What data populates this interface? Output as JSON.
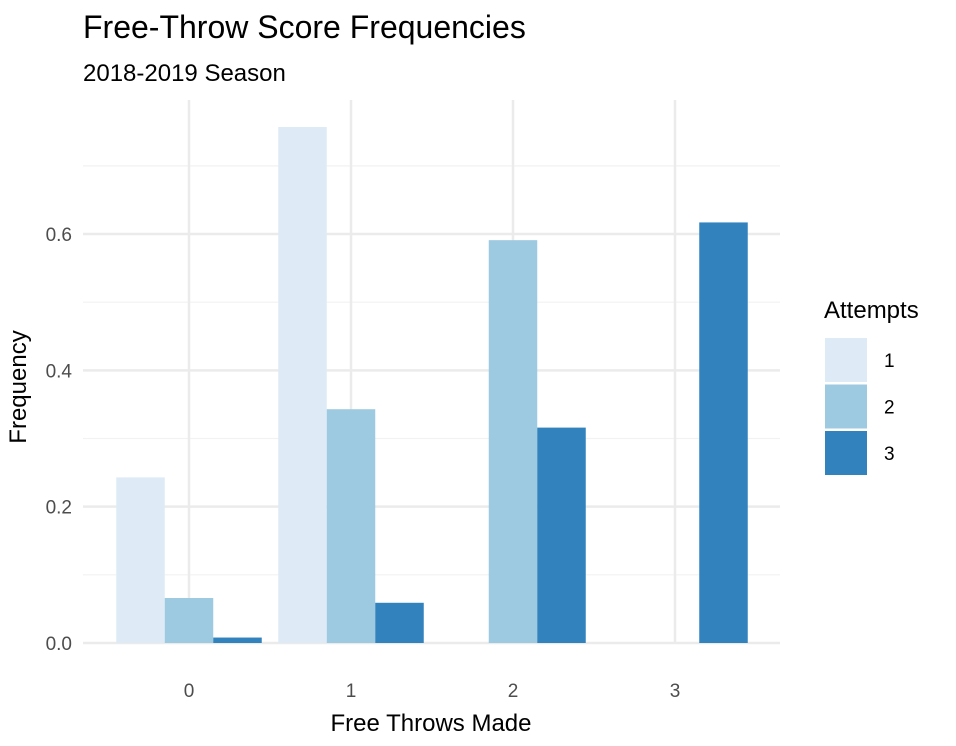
{
  "chart_data": {
    "type": "bar",
    "title": "Free-Throw Score Frequencies",
    "subtitle": "2018-2019 Season",
    "xlabel": "Free Throws Made",
    "ylabel": "Frequency",
    "categories": [
      "0",
      "1",
      "2",
      "3"
    ],
    "series": [
      {
        "name": "1",
        "color": "#deebf7",
        "values": [
          0.243,
          0.757,
          0,
          0
        ]
      },
      {
        "name": "2",
        "color": "#9ecae1",
        "values": [
          0.066,
          0.343,
          0.591,
          0
        ]
      },
      {
        "name": "3",
        "color": "#3182bd",
        "values": [
          0.008,
          0.059,
          0.316,
          0.617
        ]
      }
    ],
    "ylim": [
      0,
      0.757
    ],
    "yticks": [
      0.0,
      0.2,
      0.4,
      0.6
    ],
    "ytick_labels": [
      "0.0",
      "0.2",
      "0.4",
      "0.6"
    ],
    "grid": true,
    "legend": {
      "title": "Attempts",
      "position": "right"
    }
  }
}
